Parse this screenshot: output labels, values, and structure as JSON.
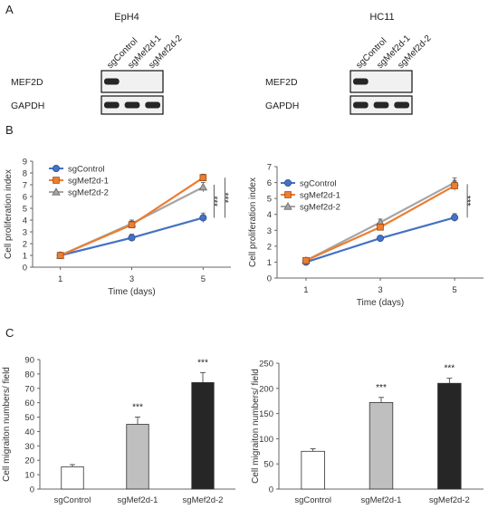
{
  "panels": {
    "a": "A",
    "b": "B",
    "c": "C"
  },
  "blots": [
    {
      "title": "EpH4",
      "lanes": [
        "sgControl",
        "sgMef2d-1",
        "sgMef2d-2"
      ],
      "rows": [
        {
          "label": "MEF2D",
          "bands": [
            1,
            0,
            0
          ]
        },
        {
          "label": "GAPDH",
          "bands": [
            1,
            1,
            1
          ]
        }
      ]
    },
    {
      "title": "HC11",
      "lanes": [
        "sgControl",
        "sgMef2d-1",
        "sgMef2d-2"
      ],
      "rows": [
        {
          "label": "MEF2D",
          "bands": [
            1,
            0,
            0
          ]
        },
        {
          "label": "GAPDH",
          "bands": [
            1,
            1,
            1
          ]
        }
      ]
    }
  ],
  "colors": {
    "sgControl": "#4472c4",
    "sgMef2d-1": "#ed7d31",
    "sgMef2d-2": "#a5a5a5",
    "bar_1": "#ffffff",
    "bar_2": "#bfbfbf",
    "bar_3": "#262626"
  },
  "chart_data": [
    {
      "type": "line",
      "xlabel": "Time (days)",
      "ylabel": "Cell proliferation index",
      "x": [
        1,
        3,
        5
      ],
      "ylim": [
        0,
        9
      ],
      "yticks": [
        0,
        1,
        2,
        3,
        4,
        5,
        6,
        7,
        8,
        9
      ],
      "legend_position": "top-left",
      "series": [
        {
          "name": "sgControl",
          "values": [
            1.0,
            2.5,
            4.2
          ],
          "errors": [
            0.1,
            0.3,
            0.4
          ],
          "marker": "circle"
        },
        {
          "name": "sgMef2d-1",
          "values": [
            1.0,
            3.6,
            7.6
          ],
          "errors": [
            0.1,
            0.3,
            0.3
          ],
          "marker": "square"
        },
        {
          "name": "sgMef2d-2",
          "values": [
            1.0,
            3.7,
            6.8
          ],
          "errors": [
            0.1,
            0.3,
            0.4
          ],
          "marker": "triangle"
        }
      ],
      "annotations": [
        "***",
        "***"
      ]
    },
    {
      "type": "line",
      "xlabel": "Time (days)",
      "ylabel": "Cell proliferation index",
      "x": [
        1,
        3,
        5
      ],
      "ylim": [
        0,
        7
      ],
      "yticks": [
        0,
        1,
        2,
        3,
        4,
        5,
        6,
        7
      ],
      "legend_position": "top-left",
      "series": [
        {
          "name": "sgControl",
          "values": [
            1.0,
            2.5,
            3.8
          ],
          "errors": [
            0.1,
            0.15,
            0.25
          ],
          "marker": "circle"
        },
        {
          "name": "sgMef2d-1",
          "values": [
            1.1,
            3.2,
            5.8
          ],
          "errors": [
            0.1,
            0.2,
            0.3
          ],
          "marker": "square"
        },
        {
          "name": "sgMef2d-2",
          "values": [
            1.1,
            3.5,
            6.0
          ],
          "errors": [
            0.1,
            0.2,
            0.3
          ],
          "marker": "triangle"
        }
      ],
      "annotations": [
        "***"
      ]
    },
    {
      "type": "bar",
      "ylabel": "Cell migraiton numbers/ field",
      "categories": [
        "sgControl",
        "sgMef2d-1",
        "sgMef2d-2"
      ],
      "values": [
        15.5,
        45,
        74
      ],
      "errors": [
        1.5,
        5,
        7
      ],
      "ylim": [
        0,
        90
      ],
      "yticks": [
        0,
        10,
        20,
        30,
        40,
        50,
        60,
        70,
        80,
        90
      ],
      "significance": [
        "",
        "***",
        "***"
      ]
    },
    {
      "type": "bar",
      "ylabel": "Cell migraiton numbers/ field",
      "categories": [
        "sgControl",
        "sgMef2d-1",
        "sgMef2d-2"
      ],
      "values": [
        75,
        172,
        210
      ],
      "errors": [
        5,
        10,
        10
      ],
      "ylim": [
        0,
        250
      ],
      "yticks": [
        0,
        50,
        100,
        150,
        200,
        250
      ],
      "significance": [
        "",
        "***",
        "***"
      ]
    }
  ]
}
